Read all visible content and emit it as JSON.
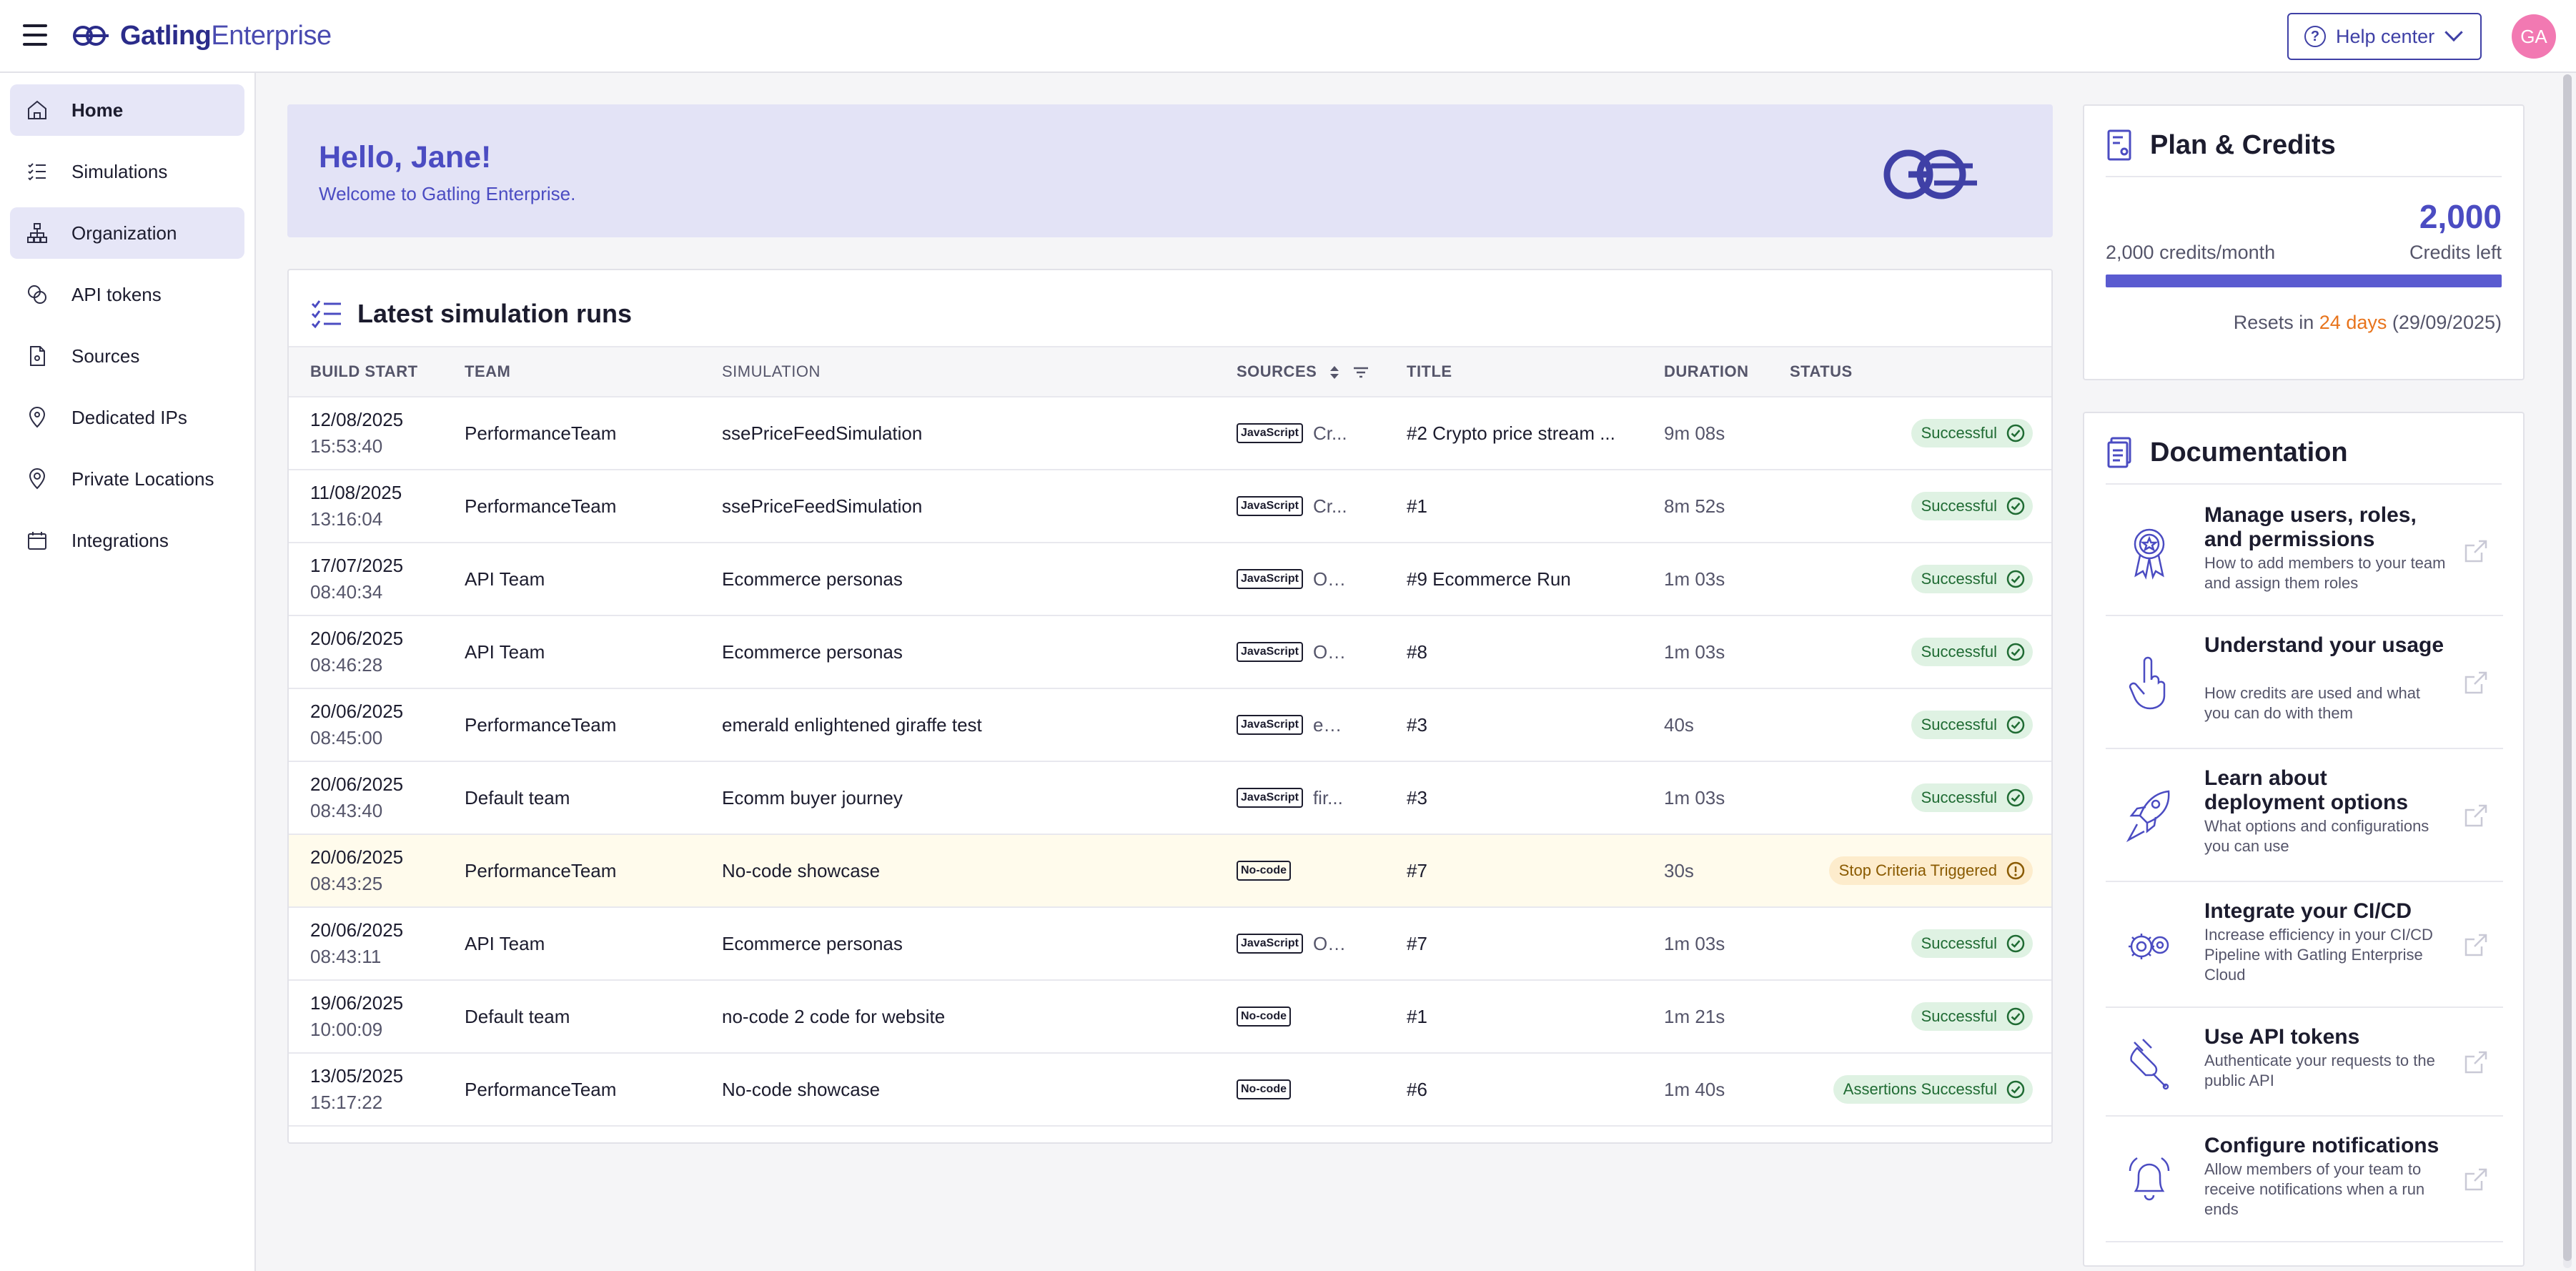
{
  "app": {
    "logo_bold": "Gatling",
    "logo_light": "Enterprise",
    "help_label": "Help center",
    "avatar_initials": "GA"
  },
  "sidebar": {
    "items": [
      {
        "label": "Home",
        "icon": "home-icon"
      },
      {
        "label": "Simulations",
        "icon": "checklist-icon"
      },
      {
        "label": "Organization",
        "icon": "org-chart-icon"
      },
      {
        "label": "API tokens",
        "icon": "tokens-icon"
      },
      {
        "label": "Sources",
        "icon": "document-icon"
      },
      {
        "label": "Dedicated IPs",
        "icon": "pin-icon"
      },
      {
        "label": "Private Locations",
        "icon": "location-icon"
      },
      {
        "label": "Integrations",
        "icon": "calendar-icon"
      }
    ]
  },
  "hero": {
    "title": "Hello, Jane!",
    "subtitle": "Welcome to Gatling Enterprise."
  },
  "runs": {
    "title": "Latest simulation runs",
    "columns": {
      "build_start": "BUILD START",
      "team": "TEAM",
      "simulation": "SIMULATION",
      "sources": "SOURCES",
      "title": "TITLE",
      "duration": "DURATION",
      "status": "STATUS"
    },
    "rows": [
      {
        "date": "12/08/2025",
        "time": "15:53:40",
        "team": "PerformanceTeam",
        "simulation": "ssePriceFeedSimulation",
        "source_badge": "JavaScript",
        "source_text": "Cr...",
        "title": "#2 Crypto price stream ...",
        "duration": "9m 08s",
        "status": "Successful",
        "status_kind": "ok"
      },
      {
        "date": "11/08/2025",
        "time": "13:16:04",
        "team": "PerformanceTeam",
        "simulation": "ssePriceFeedSimulation",
        "source_badge": "JavaScript",
        "source_text": "Cr...",
        "title": "#1",
        "duration": "8m 52s",
        "status": "Successful",
        "status_kind": "ok"
      },
      {
        "date": "17/07/2025",
        "time": "08:40:34",
        "team": "API Team",
        "simulation": "Ecommerce personas",
        "source_badge": "JavaScript",
        "source_text": "Of...",
        "title": "#9 Ecommerce Run",
        "duration": "1m 03s",
        "status": "Successful",
        "status_kind": "ok"
      },
      {
        "date": "20/06/2025",
        "time": "08:46:28",
        "team": "API Team",
        "simulation": "Ecommerce personas",
        "source_badge": "JavaScript",
        "source_text": "Of...",
        "title": "#8",
        "duration": "1m 03s",
        "status": "Successful",
        "status_kind": "ok"
      },
      {
        "date": "20/06/2025",
        "time": "08:45:00",
        "team": "PerformanceTeam",
        "simulation": "emerald enlightened giraffe test",
        "source_badge": "JavaScript",
        "source_text": "ex...",
        "title": "#3",
        "duration": "40s",
        "status": "Successful",
        "status_kind": "ok"
      },
      {
        "date": "20/06/2025",
        "time": "08:43:40",
        "team": "Default team",
        "simulation": "Ecomm buyer journey",
        "source_badge": "JavaScript",
        "source_text": "fir...",
        "title": "#3",
        "duration": "1m 03s",
        "status": "Successful",
        "status_kind": "ok"
      },
      {
        "date": "20/06/2025",
        "time": "08:43:25",
        "team": "PerformanceTeam",
        "simulation": "No-code showcase",
        "source_badge": "No-code",
        "source_text": "",
        "title": "#7",
        "duration": "30s",
        "status": "Stop Criteria Triggered",
        "status_kind": "stop"
      },
      {
        "date": "20/06/2025",
        "time": "08:43:11",
        "team": "API Team",
        "simulation": "Ecommerce personas",
        "source_badge": "JavaScript",
        "source_text": "Of...",
        "title": "#7",
        "duration": "1m 03s",
        "status": "Successful",
        "status_kind": "ok"
      },
      {
        "date": "19/06/2025",
        "time": "10:00:09",
        "team": "Default team",
        "simulation": "no-code 2 code for website",
        "source_badge": "No-code",
        "source_text": "",
        "title": "#1",
        "duration": "1m 21s",
        "status": "Successful",
        "status_kind": "ok"
      },
      {
        "date": "13/05/2025",
        "time": "15:17:22",
        "team": "PerformanceTeam",
        "simulation": "No-code showcase",
        "source_badge": "No-code",
        "source_text": "",
        "title": "#6",
        "duration": "1m 40s",
        "status": "Assertions Successful",
        "status_kind": "ok"
      }
    ]
  },
  "plan": {
    "title": "Plan & Credits",
    "credits_remaining": "2,000",
    "credits_left_label": "Credits left",
    "credits_month": "2,000 credits/month",
    "credits_fraction": 1.0,
    "resets_prefix": "Resets in",
    "resets_days": "24 days",
    "resets_date": "(29/09/2025)"
  },
  "docs": {
    "title": "Documentation",
    "items": [
      {
        "title": "Manage users, roles, and permissions",
        "desc": "How to add members to your team and assign them roles",
        "icon": "badge-icon"
      },
      {
        "title": "Understand your usage",
        "desc": "How credits are used and what you can do with them",
        "icon": "pointer-hand-icon"
      },
      {
        "title": "Learn about deployment options",
        "desc": "What options and configurations you can use",
        "icon": "rocket-icon"
      },
      {
        "title": "Integrate your CI/CD",
        "desc": "Increase efficiency in your CI/CD Pipeline with Gatling Enterprise Cloud",
        "icon": "gears-icon"
      },
      {
        "title": "Use API tokens",
        "desc": "Authenticate your requests to the public API",
        "icon": "plug-icon"
      },
      {
        "title": "Configure notifications",
        "desc": "Allow members of your team to receive notifications when a run ends",
        "icon": "bell-icon"
      }
    ]
  },
  "colors": {
    "accent": "#4b4cc2",
    "success_bg": "#dff2e3",
    "warning_bg": "#fdeccc",
    "warning_text": "#e8741c"
  }
}
